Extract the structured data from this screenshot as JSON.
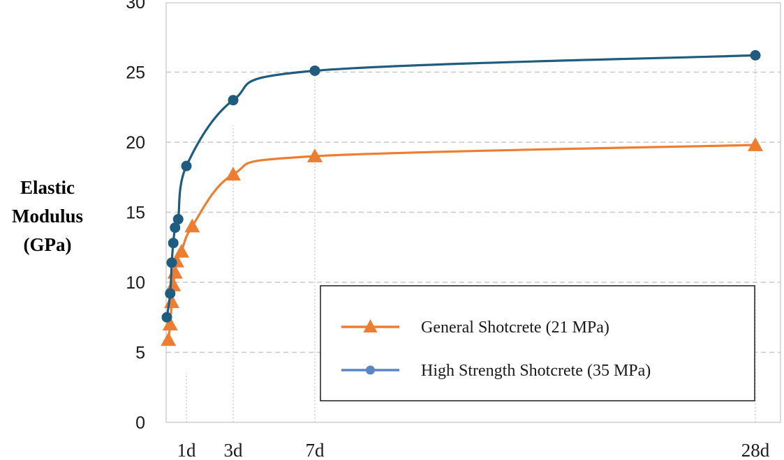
{
  "chart_data": {
    "type": "line",
    "title": "",
    "xlabel": "",
    "ylabel": [
      "Elastic",
      "Modulus",
      "(GPa)"
    ],
    "ylim": [
      0,
      30
    ],
    "xlim": [
      0,
      28
    ],
    "yticks": [
      0,
      5,
      10,
      15,
      20,
      25,
      30
    ],
    "xticks": [
      {
        "value": 1,
        "label": "1d"
      },
      {
        "value": 3,
        "label": "3d"
      },
      {
        "value": 7,
        "label": "7d"
      },
      {
        "value": 28,
        "label": "28d"
      }
    ],
    "grid": true,
    "legend_position": "bottom-right",
    "series": [
      {
        "name": "General Shotcrete (21 MPa)",
        "color": "#ED7D31",
        "marker": "triangle",
        "x": [
          0.08,
          0.17,
          0.25,
          0.33,
          0.42,
          0.5,
          0.75,
          1.25,
          3,
          7,
          28
        ],
        "y": [
          5.9,
          7.0,
          8.6,
          9.8,
          10.7,
          11.5,
          12.2,
          14.0,
          17.7,
          19.0,
          19.8
        ]
      },
      {
        "name": "High Strength Shotcrete (35 MPa)",
        "color": "#1F5C7F",
        "legend_color": "#5B86C5",
        "marker": "circle",
        "x": [
          0.0,
          0.17,
          0.25,
          0.33,
          0.42,
          0.58,
          1.0,
          3,
          7,
          28
        ],
        "y": [
          7.5,
          9.2,
          11.4,
          12.8,
          13.9,
          14.5,
          18.3,
          23.0,
          25.1,
          26.2
        ]
      }
    ]
  }
}
